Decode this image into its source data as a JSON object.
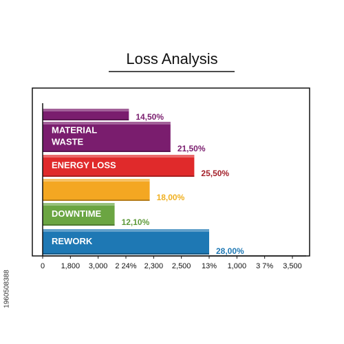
{
  "chart_data": {
    "type": "bar",
    "orientation": "horizontal",
    "title": "Loss Analysis",
    "categories": [
      null,
      "MATERIAL WASTE",
      "ENERGY LOSS",
      null,
      "DOWNTIME",
      "REWORK"
    ],
    "values": [
      14.5,
      21.5,
      25.5,
      18,
      12.1,
      28
    ],
    "value_labels": [
      "14,50%",
      "21,50%",
      "25,50%",
      "18,00%",
      "12,10%",
      "28,00%"
    ],
    "colors": [
      "#7a1d6e",
      "#7a1d6e",
      "#e02a2b",
      "#f4a722",
      "#6ba542",
      "#1e78b4"
    ],
    "label_colors": [
      "#7a1d6e",
      "#7a1d6e",
      "#a3202a",
      "#f0b020",
      "#5e9a3a",
      "#1e78b4"
    ],
    "xlim": [
      0,
      42
    ],
    "x_axis_labels": [
      "0",
      "1,800",
      "3,000",
      "2 24%",
      "2,300",
      "2,500",
      "13%",
      "1,000",
      "3 7%",
      "3,500"
    ]
  },
  "watermark_id": "1960508388"
}
